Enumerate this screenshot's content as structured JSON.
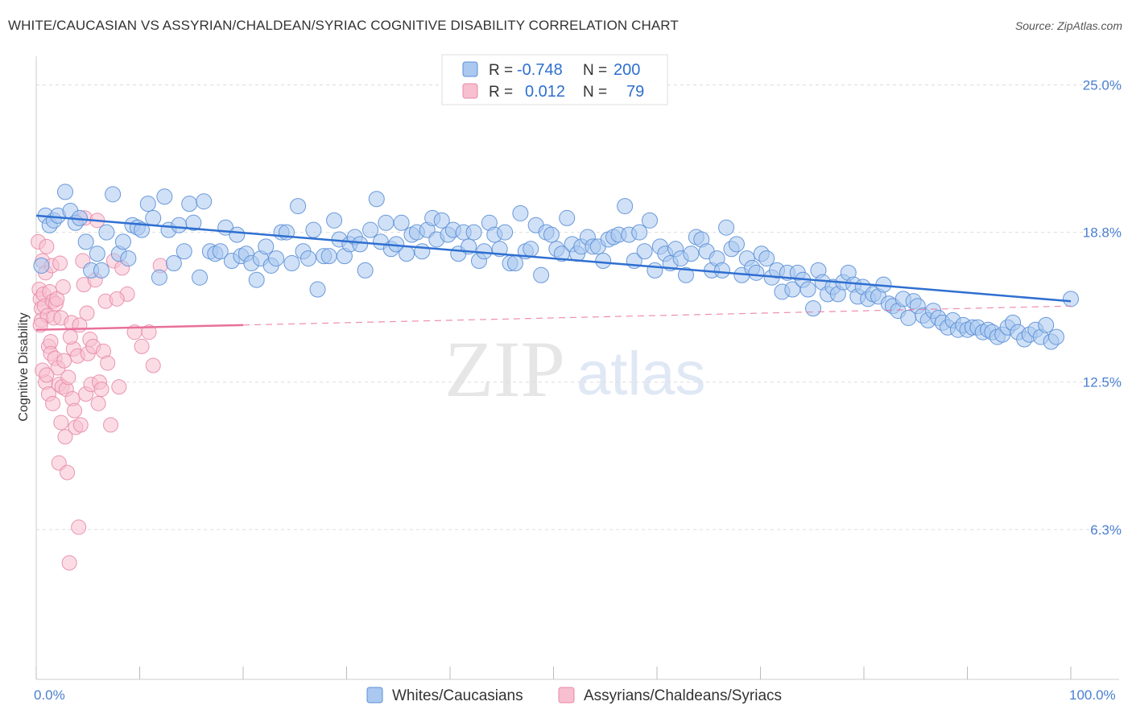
{
  "title": "WHITE/CAUCASIAN VS ASSYRIAN/CHALDEAN/SYRIAC COGNITIVE DISABILITY CORRELATION CHART",
  "source": "Source: ZipAtlas.com",
  "watermark": {
    "zip": "ZIP",
    "atlas": "atlas"
  },
  "legend": {
    "r_label": "R =",
    "n_label": "N =",
    "rows": [
      {
        "r": "-0.748",
        "n": "200"
      },
      {
        "r": "0.012",
        "n": "79"
      }
    ]
  },
  "colors": {
    "blue_fill": "#aac8f0",
    "blue_stroke": "#5b8fd6",
    "blue_line": "#2f6fd1",
    "pink_fill": "#f7bfd0",
    "pink_stroke": "#e88aa8",
    "pink_line": "#e8709a",
    "grid": "#dddddd",
    "tick_text": "#4a7fd1"
  },
  "chart_data": {
    "type": "scatter",
    "title": "WHITE/CAUCASIAN VS ASSYRIAN/CHALDEAN/SYRIAC COGNITIVE DISABILITY CORRELATION CHART",
    "xlabel": "",
    "ylabel": "Cognitive Disability",
    "x_tick_labels": [
      "0.0%",
      "100.0%"
    ],
    "y_tick_labels": [
      "25.0%",
      "18.8%",
      "12.5%",
      "6.3%"
    ],
    "xlim": [
      0,
      100
    ],
    "ylim": [
      0,
      26.2
    ],
    "y_ticks": [
      25.0,
      18.8,
      12.5,
      6.3
    ],
    "grid": "horizontal dashed",
    "legend_position": "top-center",
    "series": [
      {
        "name": "Whites/Caucasians",
        "color": "blue",
        "trend": {
          "x0": 0,
          "y0": 19.5,
          "x1": 100,
          "y1": 15.9,
          "style": "solid"
        },
        "points": [
          [
            0.5,
            17.4
          ],
          [
            0.9,
            19.5
          ],
          [
            1.3,
            19.1
          ],
          [
            1.7,
            19.3
          ],
          [
            2.1,
            19.5
          ],
          [
            2.8,
            20.5
          ],
          [
            3.3,
            19.7
          ],
          [
            3.8,
            19.2
          ],
          [
            4.2,
            19.4
          ],
          [
            4.8,
            18.4
          ],
          [
            5.3,
            17.2
          ],
          [
            5.9,
            17.9
          ],
          [
            6.3,
            17.2
          ],
          [
            6.8,
            18.8
          ],
          [
            7.4,
            20.4
          ],
          [
            8.0,
            17.9
          ],
          [
            8.4,
            18.4
          ],
          [
            8.9,
            17.7
          ],
          [
            9.3,
            19.1
          ],
          [
            9.8,
            19.0
          ],
          [
            10.2,
            18.9
          ],
          [
            10.8,
            20.0
          ],
          [
            11.3,
            19.4
          ],
          [
            11.9,
            16.9
          ],
          [
            12.4,
            20.3
          ],
          [
            12.8,
            18.9
          ],
          [
            13.3,
            17.5
          ],
          [
            13.8,
            19.1
          ],
          [
            14.3,
            18.0
          ],
          [
            14.8,
            20.0
          ],
          [
            15.2,
            19.2
          ],
          [
            15.8,
            16.9
          ],
          [
            16.2,
            20.1
          ],
          [
            16.8,
            18.0
          ],
          [
            17.3,
            17.9
          ],
          [
            17.8,
            18.0
          ],
          [
            18.3,
            19.0
          ],
          [
            18.9,
            17.6
          ],
          [
            19.4,
            18.7
          ],
          [
            19.8,
            17.8
          ],
          [
            20.3,
            17.9
          ],
          [
            20.8,
            17.5
          ],
          [
            21.3,
            16.8
          ],
          [
            21.7,
            17.7
          ],
          [
            22.2,
            18.2
          ],
          [
            22.7,
            17.4
          ],
          [
            23.2,
            17.7
          ],
          [
            23.7,
            18.8
          ],
          [
            24.2,
            18.8
          ],
          [
            24.7,
            17.5
          ],
          [
            25.3,
            19.9
          ],
          [
            25.8,
            18.0
          ],
          [
            26.3,
            17.7
          ],
          [
            26.8,
            18.9
          ],
          [
            27.2,
            16.4
          ],
          [
            27.8,
            17.8
          ],
          [
            28.3,
            17.8
          ],
          [
            28.8,
            19.3
          ],
          [
            29.3,
            18.5
          ],
          [
            29.8,
            17.8
          ],
          [
            30.3,
            18.3
          ],
          [
            30.8,
            18.6
          ],
          [
            31.3,
            18.3
          ],
          [
            31.8,
            17.2
          ],
          [
            32.3,
            18.9
          ],
          [
            32.9,
            20.2
          ],
          [
            33.3,
            18.4
          ],
          [
            33.8,
            19.2
          ],
          [
            34.3,
            18.1
          ],
          [
            34.8,
            18.3
          ],
          [
            35.3,
            19.2
          ],
          [
            35.8,
            17.9
          ],
          [
            36.3,
            18.7
          ],
          [
            36.8,
            18.8
          ],
          [
            37.3,
            18.0
          ],
          [
            37.8,
            18.9
          ],
          [
            38.3,
            19.4
          ],
          [
            38.7,
            18.5
          ],
          [
            39.2,
            19.3
          ],
          [
            39.8,
            18.7
          ],
          [
            40.3,
            18.9
          ],
          [
            40.8,
            17.9
          ],
          [
            41.3,
            18.8
          ],
          [
            41.8,
            18.2
          ],
          [
            42.3,
            18.8
          ],
          [
            42.8,
            17.6
          ],
          [
            43.3,
            18.0
          ],
          [
            43.8,
            19.2
          ],
          [
            44.3,
            18.7
          ],
          [
            44.8,
            18.1
          ],
          [
            45.3,
            18.8
          ],
          [
            45.8,
            17.5
          ],
          [
            46.3,
            17.5
          ],
          [
            46.8,
            19.6
          ],
          [
            47.3,
            18.0
          ],
          [
            47.8,
            18.1
          ],
          [
            48.3,
            19.1
          ],
          [
            48.8,
            17.0
          ],
          [
            49.3,
            18.8
          ],
          [
            49.8,
            18.7
          ],
          [
            50.3,
            18.1
          ],
          [
            50.8,
            17.9
          ],
          [
            51.3,
            19.4
          ],
          [
            51.8,
            18.3
          ],
          [
            52.3,
            17.9
          ],
          [
            52.7,
            18.2
          ],
          [
            53.3,
            18.6
          ],
          [
            53.8,
            18.2
          ],
          [
            54.3,
            18.2
          ],
          [
            54.8,
            17.6
          ],
          [
            55.3,
            18.5
          ],
          [
            55.8,
            18.6
          ],
          [
            56.3,
            18.7
          ],
          [
            56.9,
            19.9
          ],
          [
            57.3,
            18.7
          ],
          [
            57.8,
            17.6
          ],
          [
            58.3,
            18.8
          ],
          [
            58.8,
            18.0
          ],
          [
            59.3,
            19.3
          ],
          [
            59.8,
            17.2
          ],
          [
            60.3,
            18.2
          ],
          [
            60.8,
            17.9
          ],
          [
            61.3,
            17.5
          ],
          [
            61.8,
            18.1
          ],
          [
            62.3,
            17.7
          ],
          [
            62.8,
            17.0
          ],
          [
            63.3,
            17.9
          ],
          [
            63.8,
            18.6
          ],
          [
            64.3,
            18.5
          ],
          [
            64.8,
            18.0
          ],
          [
            65.3,
            17.2
          ],
          [
            65.8,
            17.7
          ],
          [
            66.3,
            17.2
          ],
          [
            66.7,
            19.0
          ],
          [
            67.2,
            18.1
          ],
          [
            67.7,
            18.3
          ],
          [
            68.2,
            17.0
          ],
          [
            68.7,
            17.7
          ],
          [
            69.2,
            17.3
          ],
          [
            69.6,
            17.1
          ],
          [
            70.1,
            17.9
          ],
          [
            70.6,
            17.7
          ],
          [
            71.1,
            16.9
          ],
          [
            71.6,
            17.2
          ],
          [
            72.1,
            16.3
          ],
          [
            72.6,
            17.1
          ],
          [
            73.1,
            16.4
          ],
          [
            73.6,
            17.1
          ],
          [
            74.1,
            16.8
          ],
          [
            74.6,
            16.4
          ],
          [
            75.1,
            15.6
          ],
          [
            75.6,
            17.2
          ],
          [
            76.0,
            16.7
          ],
          [
            76.5,
            16.2
          ],
          [
            77.0,
            16.5
          ],
          [
            77.5,
            16.2
          ],
          [
            78.0,
            16.7
          ],
          [
            78.5,
            17.1
          ],
          [
            79.0,
            16.6
          ],
          [
            79.4,
            16.1
          ],
          [
            79.9,
            16.5
          ],
          [
            80.4,
            16.0
          ],
          [
            80.9,
            16.2
          ],
          [
            81.4,
            16.1
          ],
          [
            81.9,
            16.6
          ],
          [
            82.4,
            15.8
          ],
          [
            82.8,
            15.7
          ],
          [
            83.3,
            15.5
          ],
          [
            83.8,
            16.0
          ],
          [
            84.3,
            15.2
          ],
          [
            84.8,
            15.9
          ],
          [
            85.2,
            15.7
          ],
          [
            85.7,
            15.3
          ],
          [
            86.2,
            15.1
          ],
          [
            86.7,
            15.5
          ],
          [
            87.2,
            15.2
          ],
          [
            87.6,
            15.0
          ],
          [
            88.1,
            14.8
          ],
          [
            88.6,
            15.1
          ],
          [
            89.1,
            14.7
          ],
          [
            89.6,
            14.9
          ],
          [
            90.0,
            14.7
          ],
          [
            90.5,
            14.8
          ],
          [
            91.0,
            14.8
          ],
          [
            91.5,
            14.6
          ],
          [
            92.0,
            14.7
          ],
          [
            92.4,
            14.6
          ],
          [
            92.9,
            14.4
          ],
          [
            93.4,
            14.5
          ],
          [
            93.9,
            14.8
          ],
          [
            94.4,
            15.0
          ],
          [
            94.9,
            14.6
          ],
          [
            95.5,
            14.3
          ],
          [
            96.0,
            14.5
          ],
          [
            96.6,
            14.7
          ],
          [
            97.1,
            14.4
          ],
          [
            97.6,
            14.9
          ],
          [
            98.1,
            14.2
          ],
          [
            98.6,
            14.4
          ],
          [
            100.0,
            16.0
          ]
        ]
      },
      {
        "name": "Assyrians/Chaldeans/Syriacs",
        "color": "pink",
        "trend": {
          "x0": 0,
          "y0": 14.7,
          "x1": 20,
          "y1": 14.9,
          "x_ext": 100,
          "y_ext": 15.7,
          "style": "solid-then-dashed"
        },
        "points": [
          [
            0.2,
            18.4
          ],
          [
            0.3,
            16.4
          ],
          [
            0.4,
            16.0
          ],
          [
            0.5,
            15.6
          ],
          [
            0.5,
            15.1
          ],
          [
            0.6,
            17.6
          ],
          [
            0.7,
            16.2
          ],
          [
            0.8,
            15.7
          ],
          [
            0.9,
            17.1
          ],
          [
            0.9,
            12.5
          ],
          [
            1.0,
            18.2
          ],
          [
            1.1,
            15.3
          ],
          [
            1.2,
            14.0
          ],
          [
            1.2,
            12.0
          ],
          [
            1.3,
            16.3
          ],
          [
            1.4,
            14.2
          ],
          [
            1.4,
            13.7
          ],
          [
            1.5,
            17.4
          ],
          [
            1.6,
            15.9
          ],
          [
            1.7,
            15.2
          ],
          [
            1.8,
            13.5
          ],
          [
            1.9,
            15.8
          ],
          [
            2.0,
            16.0
          ],
          [
            2.1,
            13.1
          ],
          [
            2.2,
            12.4
          ],
          [
            2.2,
            9.1
          ],
          [
            2.3,
            17.5
          ],
          [
            2.4,
            15.2
          ],
          [
            2.5,
            12.3
          ],
          [
            2.6,
            16.5
          ],
          [
            2.7,
            13.4
          ],
          [
            2.8,
            10.2
          ],
          [
            2.9,
            12.2
          ],
          [
            3.0,
            8.7
          ],
          [
            3.1,
            12.7
          ],
          [
            3.2,
            4.9
          ],
          [
            3.4,
            15.0
          ],
          [
            3.5,
            11.8
          ],
          [
            3.6,
            13.9
          ],
          [
            3.7,
            11.3
          ],
          [
            3.8,
            10.6
          ],
          [
            4.0,
            13.6
          ],
          [
            4.1,
            6.4
          ],
          [
            4.2,
            14.9
          ],
          [
            4.3,
            10.7
          ],
          [
            4.5,
            17.6
          ],
          [
            4.6,
            16.6
          ],
          [
            4.7,
            19.4
          ],
          [
            4.8,
            12.0
          ],
          [
            5.0,
            13.7
          ],
          [
            5.2,
            14.3
          ],
          [
            5.3,
            12.4
          ],
          [
            5.5,
            14.0
          ],
          [
            5.7,
            16.8
          ],
          [
            5.9,
            19.3
          ],
          [
            6.1,
            12.5
          ],
          [
            6.3,
            12.2
          ],
          [
            6.5,
            13.8
          ],
          [
            6.7,
            15.9
          ],
          [
            6.9,
            13.3
          ],
          [
            7.2,
            10.7
          ],
          [
            7.5,
            17.6
          ],
          [
            8.0,
            12.3
          ],
          [
            8.3,
            17.3
          ],
          [
            8.8,
            16.2
          ],
          [
            9.5,
            14.6
          ],
          [
            10.2,
            14.0
          ],
          [
            10.9,
            14.6
          ],
          [
            11.3,
            13.2
          ],
          [
            12.0,
            17.4
          ],
          [
            0.4,
            14.9
          ],
          [
            0.6,
            13.0
          ],
          [
            1.0,
            12.8
          ],
          [
            1.6,
            11.6
          ],
          [
            2.4,
            10.8
          ],
          [
            3.3,
            14.4
          ],
          [
            4.9,
            15.4
          ],
          [
            6.0,
            11.6
          ],
          [
            7.8,
            16.0
          ]
        ]
      }
    ]
  },
  "bottom_legend": [
    {
      "label": "Whites/Caucasians"
    },
    {
      "label": "Assyrians/Chaldeans/Syriacs"
    }
  ]
}
